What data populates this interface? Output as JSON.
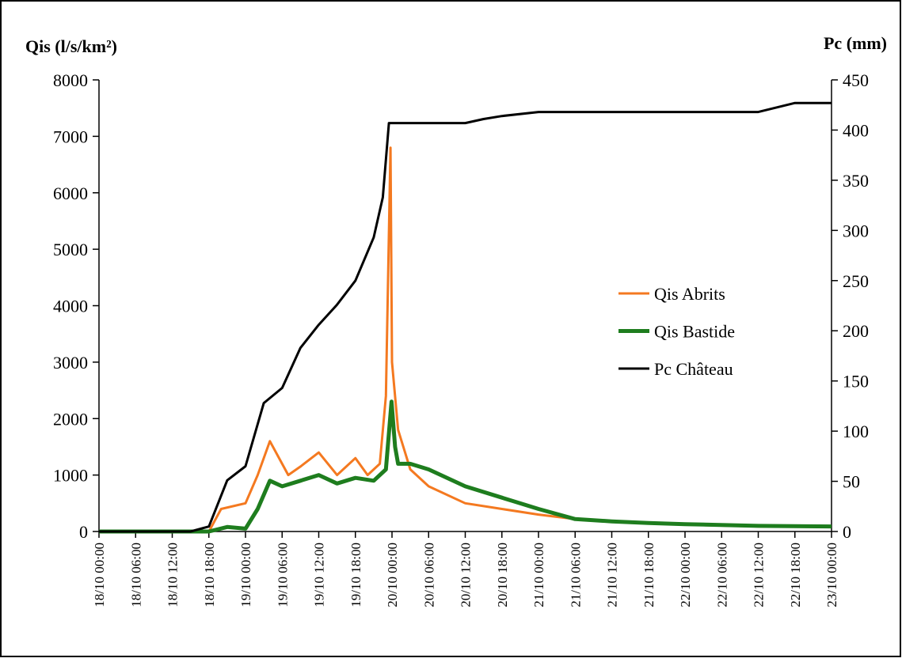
{
  "chart_data": {
    "type": "line",
    "y_label": "Qis (l/s/km²)",
    "y2_label": "Pc (mm)",
    "xlim": [
      "18/10 00:00",
      "23/10 00:00"
    ],
    "xticks": [
      "18/10 00:00",
      "18/10 06:00",
      "18/10 12:00",
      "18/10 18:00",
      "19/10 00:00",
      "19/10 06:00",
      "19/10 12:00",
      "19/10 18:00",
      "20/10 00:00",
      "20/10 06:00",
      "20/10 12:00",
      "20/10 18:00",
      "21/10 00:00",
      "21/10 06:00",
      "21/10 12:00",
      "21/10 18:00",
      "22/10 00:00",
      "22/10 06:00",
      "22/10 12:00",
      "22/10 18:00",
      "23/10 00:00"
    ],
    "ylim": [
      0,
      8000
    ],
    "yticks": [
      0,
      1000,
      2000,
      3000,
      4000,
      5000,
      6000,
      7000,
      8000
    ],
    "y2lim": [
      0,
      450
    ],
    "y2ticks": [
      0,
      50,
      100,
      150,
      200,
      250,
      300,
      350,
      400,
      450
    ],
    "legend": "right",
    "series": [
      {
        "name": "Qis Abrits",
        "color": "#f47920",
        "width": 3,
        "x": [
          "18/10 00:00",
          "18/10 18:00",
          "18/10 20:00",
          "19/10 00:00",
          "19/10 02:00",
          "19/10 04:00",
          "19/10 07:00",
          "19/10 09:00",
          "19/10 12:00",
          "19/10 15:00",
          "19/10 18:00",
          "19/10 20:00",
          "19/10 22:00",
          "19/10 23:00",
          "19/10 23:45",
          "20/10 00:00",
          "20/10 01:00",
          "20/10 03:00",
          "20/10 06:00",
          "20/10 12:00",
          "20/10 18:00",
          "21/10 00:00",
          "21/10 06:00",
          "21/10 12:00",
          "21/10 18:00",
          "22/10 00:00",
          "22/10 12:00",
          "23/10 00:00"
        ],
        "values": [
          0,
          0,
          400,
          500,
          1000,
          1600,
          1000,
          1150,
          1400,
          1000,
          1300,
          1000,
          1200,
          2400,
          6800,
          3000,
          1800,
          1100,
          800,
          500,
          400,
          300,
          220,
          180,
          150,
          120,
          90,
          80
        ]
      },
      {
        "name": "Qis Bastide",
        "color": "#1e7d1e",
        "width": 5,
        "x": [
          "18/10 00:00",
          "18/10 18:00",
          "18/10 21:00",
          "19/10 00:00",
          "19/10 02:00",
          "19/10 04:00",
          "19/10 06:00",
          "19/10 09:00",
          "19/10 12:00",
          "19/10 15:00",
          "19/10 18:00",
          "19/10 21:00",
          "19/10 23:00",
          "19/10 23:55",
          "20/10 00:30",
          "20/10 01:00",
          "20/10 03:00",
          "20/10 06:00",
          "20/10 12:00",
          "20/10 18:00",
          "21/10 00:00",
          "21/10 06:00",
          "21/10 12:00",
          "21/10 18:00",
          "22/10 00:00",
          "22/10 12:00",
          "23/10 00:00"
        ],
        "values": [
          0,
          0,
          80,
          50,
          400,
          900,
          800,
          900,
          1000,
          850,
          950,
          900,
          1100,
          2300,
          1500,
          1200,
          1200,
          1100,
          800,
          600,
          400,
          220,
          180,
          150,
          130,
          100,
          90
        ]
      },
      {
        "name": "Pc Château",
        "color": "#000000",
        "width": 3,
        "axis": "y2",
        "x": [
          "18/10 00:00",
          "18/10 15:00",
          "18/10 18:00",
          "18/10 21:00",
          "19/10 00:00",
          "19/10 03:00",
          "19/10 06:00",
          "19/10 09:00",
          "19/10 12:00",
          "19/10 15:00",
          "19/10 18:00",
          "19/10 21:00",
          "19/10 22:30",
          "19/10 23:30",
          "20/10 00:00",
          "20/10 12:00",
          "20/10 15:00",
          "20/10 18:00",
          "21/10 00:00",
          "22/10 12:00",
          "22/10 18:00",
          "23/10 00:00"
        ],
        "values": [
          0,
          0,
          5,
          51,
          65,
          128,
          143,
          183,
          206,
          226,
          250,
          293,
          333,
          407,
          407,
          407,
          411,
          414,
          418,
          418,
          427,
          427
        ]
      }
    ]
  }
}
